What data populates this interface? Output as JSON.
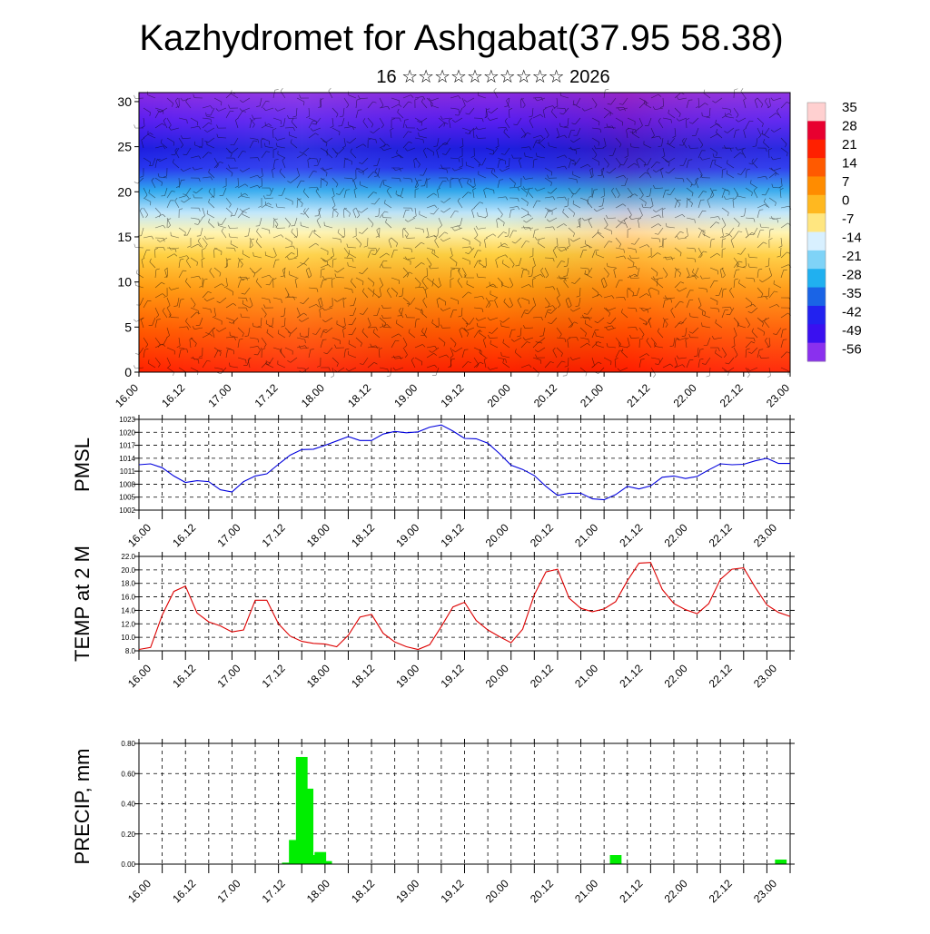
{
  "header": {
    "title": "Kazhydromet for Ashgabat(37.95 58.38)",
    "subtitle": "16 ☆☆☆☆☆☆☆☆☆☆ 2026"
  },
  "chart_data": [
    {
      "type": "heatmap",
      "name": "cross-section",
      "xlabel": "",
      "ylabel": "",
      "x_tick_labels": [
        "16.00",
        "16.12",
        "17.00",
        "17.12",
        "18.00",
        "18.12",
        "19.00",
        "19.12",
        "20.00",
        "20.12",
        "21.00",
        "21.12",
        "22.00",
        "22.12",
        "23.00"
      ],
      "ylim": [
        0,
        31
      ],
      "y_tick_labels": [
        "0",
        "5",
        "10",
        "15",
        "20",
        "25",
        "30"
      ],
      "colorbar": {
        "labels": [
          "35",
          "28",
          "21",
          "14",
          "7",
          "0",
          "-7",
          "-14",
          "-21",
          "-28",
          "-35",
          "-42",
          "-49",
          "-56"
        ],
        "colors": [
          "#ffd0d0",
          "#e80030",
          "#ff2000",
          "#ff5a00",
          "#ff8c00",
          "#ffb820",
          "#ffe680",
          "#d8f0ff",
          "#7fd3f7",
          "#20b0f0",
          "#1a64e6",
          "#2222f0",
          "#3a10f0",
          "#8a30ee"
        ]
      },
      "note": "temperature (°C) with wind barbs vs height (km)"
    },
    {
      "type": "line",
      "name": "PMSL",
      "ylabel": "PMSL",
      "ylim": [
        1002,
        1023
      ],
      "y_tick_labels": [
        "1002",
        "1005",
        "1008",
        "1011",
        "1014",
        "1017",
        "1020",
        "1023"
      ],
      "x_tick_labels": [
        "16.00",
        "16.12",
        "17.00",
        "17.12",
        "18.00",
        "18.12",
        "19.00",
        "19.12",
        "20.00",
        "20.12",
        "21.00",
        "21.12",
        "22.00",
        "22.12",
        "23.00"
      ],
      "color": "#0000dd",
      "values": [
        1012.5,
        1012.7,
        1011.8,
        1009.9,
        1008.4,
        1008.8,
        1008.6,
        1006.7,
        1006.2,
        1008.6,
        1009.9,
        1010.4,
        1012.6,
        1014.7,
        1016.0,
        1016.1,
        1017.0,
        1018.0,
        1019.0,
        1018.1,
        1018.1,
        1019.6,
        1020.2,
        1019.9,
        1020.1,
        1021.2,
        1021.7,
        1020.3,
        1018.6,
        1018.5,
        1017.5,
        1015.1,
        1012.4,
        1011.4,
        1010.0,
        1007.5,
        1005.4,
        1005.9,
        1005.9,
        1004.6,
        1004.4,
        1005.6,
        1007.5,
        1006.9,
        1007.6,
        1009.6,
        1009.9,
        1009.3,
        1009.8,
        1011.3,
        1012.7,
        1012.5,
        1012.6,
        1013.4,
        1014.0,
        1012.8,
        1012.8
      ]
    },
    {
      "type": "line",
      "name": "TEMP at 2 M",
      "ylabel": "TEMP at 2 M",
      "ylim": [
        8,
        22
      ],
      "y_tick_labels": [
        "8.0",
        "10.0",
        "12.0",
        "14.0",
        "16.0",
        "18.0",
        "20.0",
        "22.0"
      ],
      "x_tick_labels": [
        "16.00",
        "16.12",
        "17.00",
        "17.12",
        "18.00",
        "18.12",
        "19.00",
        "19.12",
        "20.00",
        "20.12",
        "21.00",
        "21.12",
        "22.00",
        "22.12",
        "23.00"
      ],
      "color": "#dd0000",
      "values": [
        8.2,
        8.5,
        13.3,
        16.8,
        17.6,
        13.6,
        12.3,
        11.7,
        10.8,
        11.1,
        15.5,
        15.5,
        12.0,
        10.2,
        9.4,
        9.1,
        9.0,
        8.6,
        10.3,
        13.0,
        13.4,
        10.6,
        9.3,
        8.6,
        8.2,
        8.9,
        11.6,
        14.5,
        15.2,
        12.5,
        11.1,
        10.1,
        9.2,
        11.2,
        16.3,
        19.7,
        20.1,
        15.8,
        14.3,
        13.8,
        14.2,
        15.3,
        18.4,
        21.0,
        21.1,
        17.1,
        15.0,
        14.1,
        13.5,
        15.0,
        18.6,
        20.1,
        20.3,
        17.4,
        14.8,
        13.7,
        13.1
      ]
    },
    {
      "type": "bar",
      "name": "PRECIP, mm",
      "ylabel": "PRECIP, mm",
      "ylim": [
        0,
        0.8
      ],
      "y_tick_labels": [
        "0.00",
        "0.20",
        "0.40",
        "0.60",
        "0.80"
      ],
      "x_tick_labels": [
        "16.00",
        "16.12",
        "17.00",
        "17.12",
        "18.00",
        "18.12",
        "19.00",
        "19.12",
        "20.00",
        "20.12",
        "21.00",
        "21.12",
        "22.00",
        "22.12",
        "23.00"
      ],
      "color": "#00ee00",
      "bars": [
        {
          "x_index": 12.8,
          "value": 0.01
        },
        {
          "x_index": 13.4,
          "value": 0.16
        },
        {
          "x_index": 14.0,
          "value": 0.71
        },
        {
          "x_index": 14.5,
          "value": 0.5
        },
        {
          "x_index": 15.0,
          "value": 0.06
        },
        {
          "x_index": 15.6,
          "value": 0.08
        },
        {
          "x_index": 16.1,
          "value": 0.02
        },
        {
          "x_index": 41.0,
          "value": 0.06
        },
        {
          "x_index": 55.2,
          "value": 0.03
        }
      ]
    }
  ]
}
